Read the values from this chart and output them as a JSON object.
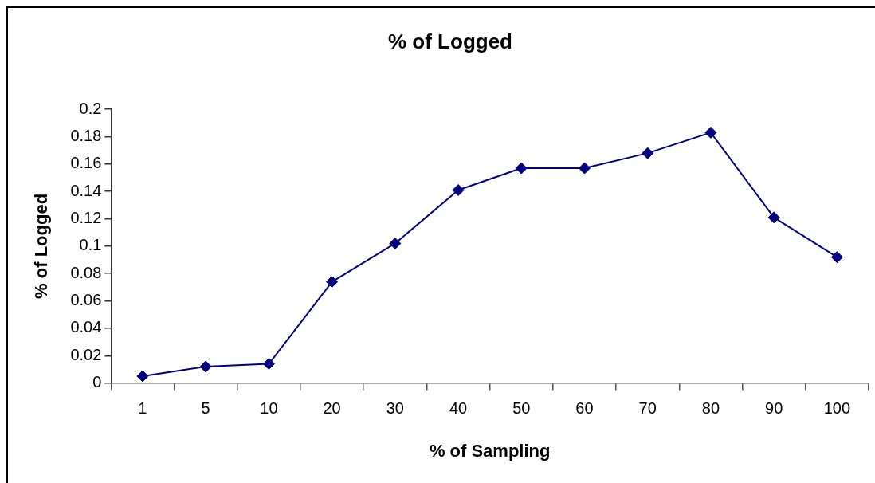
{
  "chart_data": {
    "type": "line",
    "title": "% of Logged",
    "xlabel": "% of Sampling",
    "ylabel": "% of Logged",
    "categories": [
      "1",
      "5",
      "10",
      "20",
      "30",
      "40",
      "50",
      "60",
      "70",
      "80",
      "90",
      "100"
    ],
    "series": [
      {
        "color": "#000080",
        "values": [
          0.005,
          0.012,
          0.014,
          0.074,
          0.102,
          0.141,
          0.157,
          0.157,
          0.168,
          0.183,
          0.121,
          0.092
        ]
      }
    ],
    "ylim": [
      0,
      0.2
    ],
    "yticks": [
      0,
      0.02,
      0.04,
      0.06,
      0.08,
      0.1,
      0.12,
      0.14,
      0.16,
      0.18,
      0.2
    ],
    "grid": false,
    "marker": "diamond",
    "line_style": "solid"
  }
}
